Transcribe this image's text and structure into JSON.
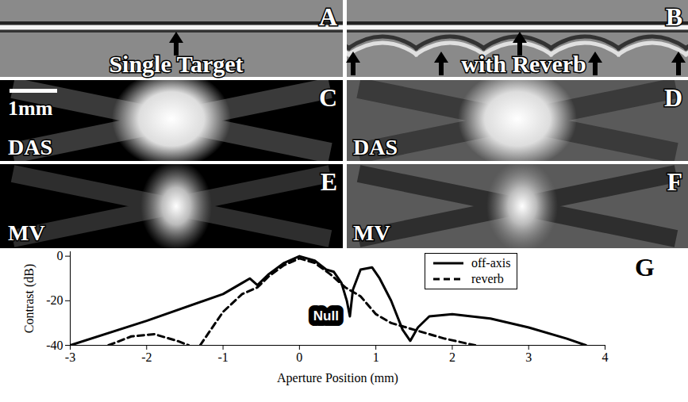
{
  "image_panels": [
    {
      "label": "A",
      "text": "Single Target"
    },
    {
      "label": "B",
      "text": "with Reverb"
    },
    {
      "label": "C",
      "text": "DAS",
      "scale_bar": "1mm"
    },
    {
      "label": "D",
      "text": "DAS"
    },
    {
      "label": "E",
      "text": "MV"
    },
    {
      "label": "F",
      "text": "MV"
    }
  ],
  "chart_data": {
    "type": "line",
    "panel_label": "G",
    "x_label": "Aperture Position (mm)",
    "y_label": "Contrast (dB)",
    "xlim": [
      -3,
      4
    ],
    "xticks": [
      -3,
      -2,
      -1,
      0,
      1,
      2,
      3,
      4
    ],
    "ylim": [
      -40,
      2
    ],
    "yticks": [
      -40,
      -20,
      0
    ],
    "grid": false,
    "legend": "top-right",
    "series": [
      {
        "name": "off-axis",
        "color": "#000000",
        "line_style": "solid",
        "x": [
          -3,
          -2,
          -1,
          -0.75,
          -0.65,
          -0.55,
          -0.4,
          -0.2,
          0,
          0.2,
          0.35,
          0.45,
          0.55,
          0.62,
          0.66,
          0.7,
          0.8,
          0.95,
          1.05,
          1.2,
          1.35,
          1.45,
          1.55,
          1.7,
          2,
          2.5,
          3,
          3.5,
          3.75
        ],
        "values": [
          -40,
          -29,
          -17,
          -12,
          -10,
          -13,
          -8,
          -3,
          0,
          -2,
          -6,
          -7,
          -12,
          -20,
          -27,
          -15,
          -6,
          -5,
          -10,
          -20,
          -33,
          -38,
          -32,
          -27,
          -26,
          -28,
          -32,
          -37,
          -40
        ]
      },
      {
        "name": "reverb",
        "color": "#000000",
        "line_style": "dashed",
        "x": [
          -2.5,
          -2.2,
          -1.9,
          -1.6,
          -1.45,
          -1.4,
          -1.3,
          -1,
          -0.75,
          -0.55,
          -0.4,
          -0.2,
          0,
          0.2,
          0.4,
          0.6,
          0.8,
          1.0,
          1.2,
          1.5,
          1.9,
          2.3
        ],
        "values": [
          -40,
          -36,
          -35,
          -38,
          -40,
          null,
          -40,
          -25,
          -17,
          -14,
          -9,
          -4,
          -1,
          -3,
          -8,
          -14,
          -18,
          -26,
          -30,
          -33,
          -37,
          -40
        ]
      }
    ],
    "annotations": [
      {
        "text": "Null",
        "x": 0.66,
        "y": -27
      }
    ]
  }
}
